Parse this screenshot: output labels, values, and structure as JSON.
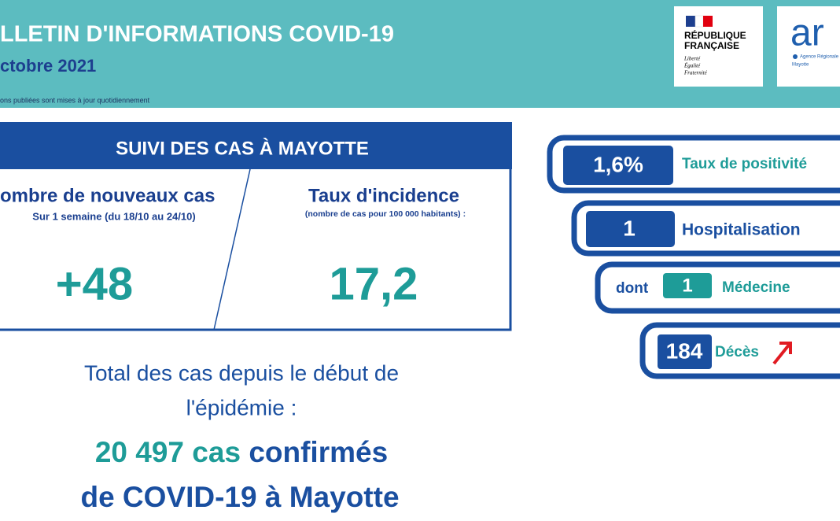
{
  "header": {
    "title": "LLETIN D'INFORMATIONS COVID-19",
    "date": "ctobre 2021",
    "note": "ons publiées sont mises à jour quotidiennement"
  },
  "logos": {
    "republique": {
      "line1": "RÉPUBLIQUE",
      "line2": "FRANÇAISE",
      "motto": [
        "Liberté",
        "Égalité",
        "Fraternité"
      ]
    },
    "ars": {
      "mark": "ar",
      "name": "Agence Régionale",
      "region": "Mayotte"
    }
  },
  "cases": {
    "title": "SUIVI DES CAS À MAYOTTE",
    "new_cases": {
      "label": "ombre de nouveaux cas",
      "period": "Sur 1 semaine (du 18/10 au 24/10)",
      "value": "+48"
    },
    "incidence": {
      "label": "Taux d'incidence",
      "note": "(nombre de cas pour 100 000 habitants) :",
      "value": "17,2"
    }
  },
  "total": {
    "line1": "Total des cas depuis le début de",
    "line2": "l'épidémie :",
    "count": "20 497 cas",
    "confirmed": "confirmés",
    "line4": "de COVID-19 à Mayotte"
  },
  "indicators": {
    "positivity": {
      "value": "1,6%",
      "label": "Taux de positivité"
    },
    "hospitalisation": {
      "value": "1",
      "label": "Hospitalisation"
    },
    "medecine": {
      "prefix": "dont",
      "value": "1",
      "label": "Médecine"
    },
    "deces": {
      "value": "184",
      "label": "Décès"
    }
  }
}
